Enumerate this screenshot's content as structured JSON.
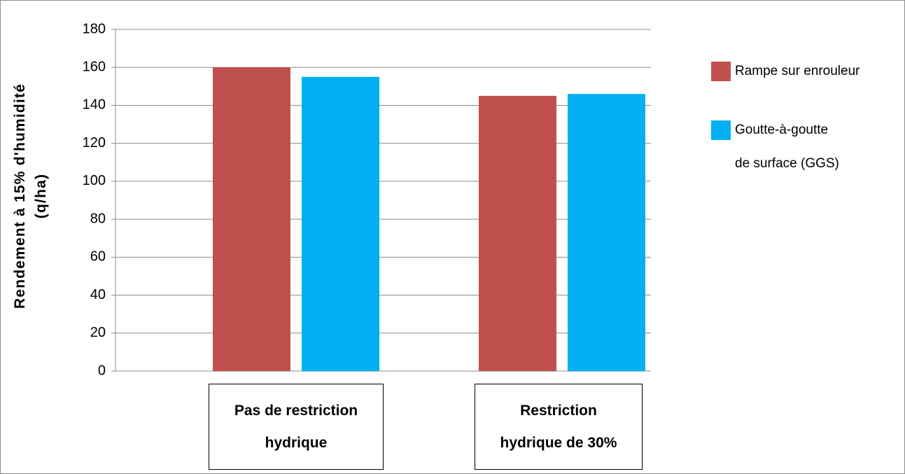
{
  "chart_data": {
    "type": "bar",
    "y_label": "Rendement à 15% d'humidité\n(q/ha)",
    "categories": [
      "Pas de restriction\nhydrique",
      "Restriction\nhydrique de 30%"
    ],
    "series": [
      {
        "name": "Rampe sur enrouleur",
        "color": "#c0504d",
        "values": [
          160,
          145
        ]
      },
      {
        "name": "Goutte-à-goutte\nde surface (GGS)",
        "color": "#00b0f0",
        "values": [
          155,
          146
        ]
      }
    ],
    "ylim": [
      0,
      180
    ],
    "yticks": [
      0,
      20,
      40,
      60,
      80,
      100,
      120,
      140,
      160,
      180
    ],
    "grid": true,
    "legend": "right"
  }
}
